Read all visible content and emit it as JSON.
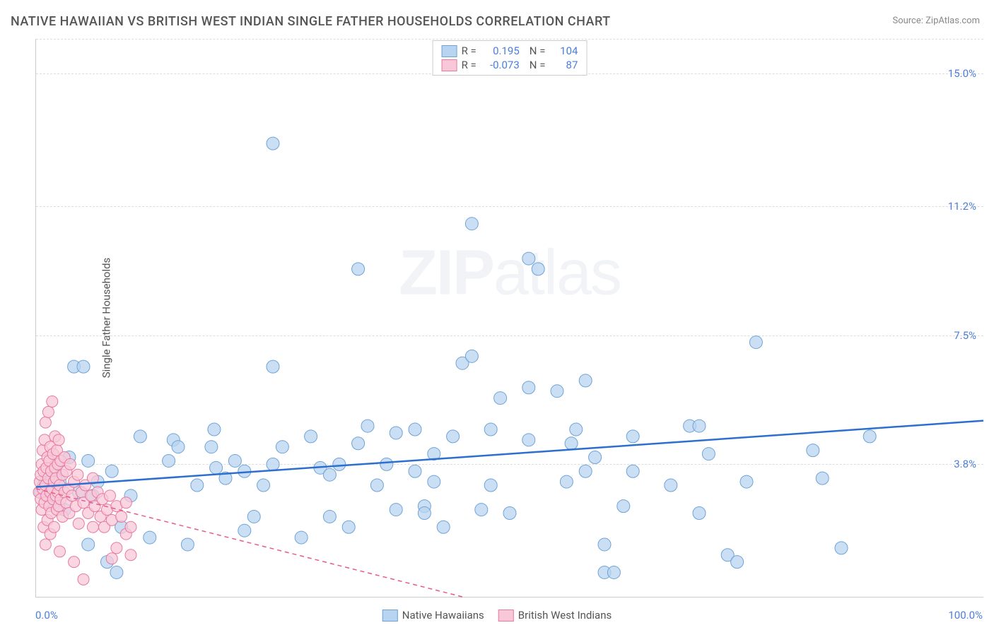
{
  "title": "NATIVE HAWAIIAN VS BRITISH WEST INDIAN SINGLE FATHER HOUSEHOLDS CORRELATION CHART",
  "source": "Source: ZipAtlas.com",
  "y_axis_label": "Single Father Households",
  "watermark_bold": "ZIP",
  "watermark_light": "atlas",
  "chart": {
    "type": "scatter",
    "background_color": "#ffffff",
    "grid_color": "#dddddd",
    "axis_color": "#cccccc",
    "text_color": "#555555",
    "tick_label_color": "#4a7fd8",
    "xlim": [
      0,
      100
    ],
    "ylim": [
      0,
      16
    ],
    "y_ticks": [
      {
        "value": 3.8,
        "label": "3.8%"
      },
      {
        "value": 7.5,
        "label": "7.5%"
      },
      {
        "value": 11.2,
        "label": "11.2%"
      },
      {
        "value": 15.0,
        "label": "15.0%"
      }
    ],
    "x_ticks": [
      {
        "value": 0,
        "label": "0.0%"
      },
      {
        "value": 100,
        "label": "100.0%"
      }
    ],
    "series": [
      {
        "name": "Native Hawaiians",
        "marker_color_fill": "#b8d4f0",
        "marker_color_stroke": "#6fa3d8",
        "marker_radius": 9,
        "marker_opacity": 0.75,
        "line_color": "#2d6fcf",
        "line_width": 2.5,
        "line_dash": "none",
        "R": "0.195",
        "N": "104",
        "trend_line": {
          "x1": 0,
          "y1": 3.15,
          "x2": 100,
          "y2": 5.05
        },
        "points": [
          [
            0.5,
            3.0
          ],
          [
            0.8,
            3.2
          ],
          [
            1.0,
            2.9
          ],
          [
            1.2,
            3.5
          ],
          [
            1.5,
            3.1
          ],
          [
            1.8,
            2.7
          ],
          [
            2.0,
            3.6
          ],
          [
            2.5,
            3.3
          ],
          [
            3.0,
            2.5
          ],
          [
            3.5,
            4.0
          ],
          [
            4.0,
            6.6
          ],
          [
            4.5,
            3.0
          ],
          [
            5.0,
            6.6
          ],
          [
            5.5,
            1.5
          ],
          [
            6.0,
            2.9
          ],
          [
            6.5,
            3.3
          ],
          [
            7.5,
            1.0
          ],
          [
            8.0,
            3.6
          ],
          [
            8.5,
            0.7
          ],
          [
            9.0,
            2.0
          ],
          [
            10.0,
            2.9
          ],
          [
            11.0,
            4.6
          ],
          [
            12.0,
            1.7
          ],
          [
            14.0,
            3.9
          ],
          [
            14.5,
            4.5
          ],
          [
            15.0,
            4.3
          ],
          [
            16.0,
            1.5
          ],
          [
            17.0,
            3.2
          ],
          [
            18.5,
            4.3
          ],
          [
            18.8,
            4.8
          ],
          [
            19.0,
            3.7
          ],
          [
            20.0,
            3.4
          ],
          [
            21.0,
            3.9
          ],
          [
            22.0,
            3.6
          ],
          [
            22.0,
            1.9
          ],
          [
            23.0,
            2.3
          ],
          [
            24.0,
            3.2
          ],
          [
            25.0,
            6.6
          ],
          [
            25.0,
            3.8
          ],
          [
            25.0,
            13.0
          ],
          [
            26.0,
            4.3
          ],
          [
            28.0,
            1.7
          ],
          [
            29.0,
            4.6
          ],
          [
            30.0,
            3.7
          ],
          [
            31.0,
            2.3
          ],
          [
            31.0,
            3.5
          ],
          [
            32.0,
            3.8
          ],
          [
            33.0,
            2.0
          ],
          [
            34.0,
            4.4
          ],
          [
            34.0,
            9.4
          ],
          [
            35.0,
            4.9
          ],
          [
            36.0,
            3.2
          ],
          [
            37.0,
            3.8
          ],
          [
            38.0,
            2.5
          ],
          [
            38.0,
            4.7
          ],
          [
            40.0,
            4.8
          ],
          [
            40.0,
            3.6
          ],
          [
            41.0,
            2.6
          ],
          [
            41.0,
            2.4
          ],
          [
            42.0,
            3.3
          ],
          [
            42.0,
            4.1
          ],
          [
            43.0,
            2.0
          ],
          [
            44.0,
            4.6
          ],
          [
            45.0,
            6.7
          ],
          [
            46.0,
            6.9
          ],
          [
            46.0,
            10.7
          ],
          [
            47.0,
            2.5
          ],
          [
            48.0,
            4.8
          ],
          [
            48.0,
            3.2
          ],
          [
            49.0,
            5.7
          ],
          [
            50.0,
            2.4
          ],
          [
            52.0,
            6.0
          ],
          [
            52.0,
            9.7
          ],
          [
            52.0,
            4.5
          ],
          [
            53.0,
            9.4
          ],
          [
            55.0,
            5.9
          ],
          [
            56.0,
            3.3
          ],
          [
            56.5,
            4.4
          ],
          [
            57.0,
            4.8
          ],
          [
            58.0,
            6.2
          ],
          [
            58.0,
            3.6
          ],
          [
            59.0,
            4.0
          ],
          [
            60.0,
            1.5
          ],
          [
            60.0,
            0.7
          ],
          [
            61.0,
            0.7
          ],
          [
            62.0,
            2.6
          ],
          [
            63.0,
            3.6
          ],
          [
            63.0,
            4.6
          ],
          [
            67.0,
            3.2
          ],
          [
            69.0,
            4.9
          ],
          [
            70.0,
            4.9
          ],
          [
            70.0,
            2.4
          ],
          [
            71.0,
            4.1
          ],
          [
            73.0,
            1.2
          ],
          [
            74.0,
            1.0
          ],
          [
            75.0,
            3.3
          ],
          [
            76.0,
            7.3
          ],
          [
            82.0,
            4.2
          ],
          [
            83.0,
            3.4
          ],
          [
            85.0,
            1.4
          ],
          [
            88.0,
            4.6
          ],
          [
            1.0,
            3.3
          ],
          [
            2.2,
            3.8
          ],
          [
            5.5,
            3.9
          ]
        ]
      },
      {
        "name": "British West Indians",
        "marker_color_fill": "#f8c8d8",
        "marker_color_stroke": "#e87aa0",
        "marker_radius": 8,
        "marker_opacity": 0.75,
        "line_color": "#e85a8a",
        "line_width": 1.5,
        "line_dash": "6,5",
        "R": "-0.073",
        "N": "87",
        "trend_line": {
          "x1": 0,
          "y1": 3.1,
          "x2": 45,
          "y2": 0.0
        },
        "points": [
          [
            0.3,
            3.0
          ],
          [
            0.4,
            3.3
          ],
          [
            0.5,
            2.8
          ],
          [
            0.5,
            3.5
          ],
          [
            0.6,
            2.5
          ],
          [
            0.6,
            3.8
          ],
          [
            0.7,
            3.1
          ],
          [
            0.7,
            4.2
          ],
          [
            0.8,
            2.0
          ],
          [
            0.8,
            3.6
          ],
          [
            0.9,
            2.7
          ],
          [
            0.9,
            4.5
          ],
          [
            1.0,
            3.2
          ],
          [
            1.0,
            1.5
          ],
          [
            1.0,
            5.0
          ],
          [
            1.1,
            2.9
          ],
          [
            1.1,
            3.7
          ],
          [
            1.2,
            2.2
          ],
          [
            1.2,
            4.0
          ],
          [
            1.3,
            3.4
          ],
          [
            1.3,
            5.3
          ],
          [
            1.4,
            2.6
          ],
          [
            1.4,
            3.9
          ],
          [
            1.5,
            3.0
          ],
          [
            1.5,
            1.8
          ],
          [
            1.5,
            4.3
          ],
          [
            1.6,
            2.4
          ],
          [
            1.6,
            3.6
          ],
          [
            1.7,
            3.1
          ],
          [
            1.7,
            5.6
          ],
          [
            1.8,
            2.8
          ],
          [
            1.8,
            4.1
          ],
          [
            1.9,
            3.3
          ],
          [
            1.9,
            2.0
          ],
          [
            2.0,
            3.7
          ],
          [
            2.0,
            4.6
          ],
          [
            2.1,
            2.9
          ],
          [
            2.1,
            3.4
          ],
          [
            2.2,
            2.5
          ],
          [
            2.2,
            4.2
          ],
          [
            2.3,
            3.0
          ],
          [
            2.3,
            3.8
          ],
          [
            2.4,
            2.6
          ],
          [
            2.4,
            4.5
          ],
          [
            2.5,
            3.2
          ],
          [
            2.5,
            1.3
          ],
          [
            2.6,
            3.9
          ],
          [
            2.6,
            2.8
          ],
          [
            2.8,
            3.5
          ],
          [
            2.8,
            2.3
          ],
          [
            3.0,
            3.0
          ],
          [
            3.0,
            4.0
          ],
          [
            3.2,
            2.7
          ],
          [
            3.2,
            3.6
          ],
          [
            3.4,
            3.1
          ],
          [
            3.5,
            2.4
          ],
          [
            3.6,
            3.8
          ],
          [
            3.8,
            2.9
          ],
          [
            4.0,
            3.3
          ],
          [
            4.0,
            1.0
          ],
          [
            4.2,
            2.6
          ],
          [
            4.4,
            3.5
          ],
          [
            4.5,
            2.1
          ],
          [
            4.8,
            3.0
          ],
          [
            5.0,
            2.7
          ],
          [
            5.0,
            0.5
          ],
          [
            5.2,
            3.2
          ],
          [
            5.5,
            2.4
          ],
          [
            5.8,
            2.9
          ],
          [
            6.0,
            2.0
          ],
          [
            6.0,
            3.4
          ],
          [
            6.2,
            2.6
          ],
          [
            6.5,
            3.0
          ],
          [
            6.8,
            2.3
          ],
          [
            7.0,
            2.8
          ],
          [
            7.2,
            2.0
          ],
          [
            7.5,
            2.5
          ],
          [
            7.8,
            2.9
          ],
          [
            8.0,
            2.2
          ],
          [
            8.0,
            1.1
          ],
          [
            8.5,
            2.6
          ],
          [
            8.5,
            1.4
          ],
          [
            9.0,
            2.3
          ],
          [
            9.5,
            2.7
          ],
          [
            9.5,
            1.8
          ],
          [
            10.0,
            2.0
          ],
          [
            10.0,
            1.2
          ]
        ]
      }
    ],
    "bottom_legend": [
      {
        "label": "Native Hawaiians",
        "fill": "#b8d4f0",
        "stroke": "#6fa3d8"
      },
      {
        "label": "British West Indians",
        "fill": "#f8c8d8",
        "stroke": "#e87aa0"
      }
    ],
    "stats_legend": [
      {
        "fill": "#b8d4f0",
        "stroke": "#6fa3d8",
        "R_label": "R =",
        "R": "0.195",
        "N_label": "N =",
        "N": "104"
      },
      {
        "fill": "#f8c8d8",
        "stroke": "#e87aa0",
        "R_label": "R =",
        "R": "-0.073",
        "N_label": "N =",
        "N": "87"
      }
    ]
  }
}
